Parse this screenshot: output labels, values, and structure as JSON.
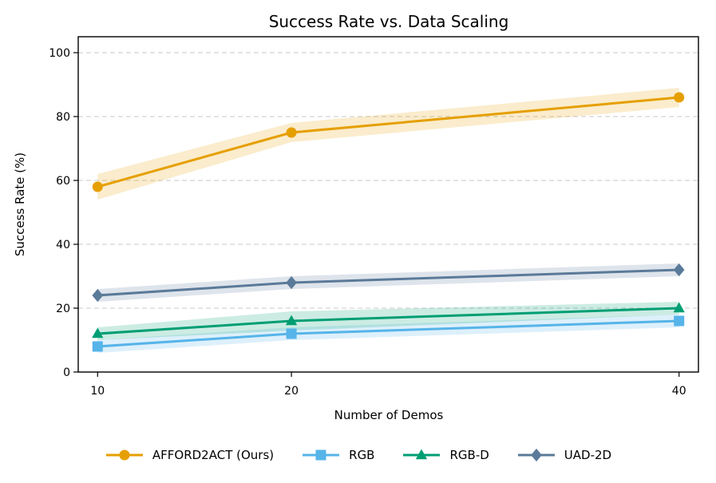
{
  "chart_data": {
    "type": "line",
    "title": "Success Rate vs. Data Scaling",
    "xlabel": "Number of Demos",
    "ylabel": "Success Rate (%)",
    "x": [
      10,
      20,
      40
    ],
    "xticks": [
      "10",
      "20",
      "40"
    ],
    "xlim": [
      9,
      41
    ],
    "yticks": [
      "0",
      "20",
      "40",
      "60",
      "80",
      "100"
    ],
    "ylim": [
      0,
      105
    ],
    "grid": "horizontal dashed",
    "legend_position": "bottom-center",
    "series": [
      {
        "name": "AFFORD2ACT (Ours)",
        "values": [
          58,
          75,
          86
        ],
        "band": [
          4,
          3,
          3
        ],
        "color": "#E69F00",
        "marker": "circle"
      },
      {
        "name": "RGB",
        "values": [
          8,
          12,
          16
        ],
        "band": [
          2,
          2,
          2
        ],
        "color": "#56B4E9",
        "marker": "square"
      },
      {
        "name": "RGB-D",
        "values": [
          12,
          16,
          20
        ],
        "band": [
          2,
          3,
          2
        ],
        "color": "#009E73",
        "marker": "triangle"
      },
      {
        "name": "UAD-2D",
        "values": [
          24,
          28,
          32
        ],
        "band": [
          2,
          2,
          2
        ],
        "color": "#5A7A99",
        "marker": "diamond"
      }
    ]
  }
}
